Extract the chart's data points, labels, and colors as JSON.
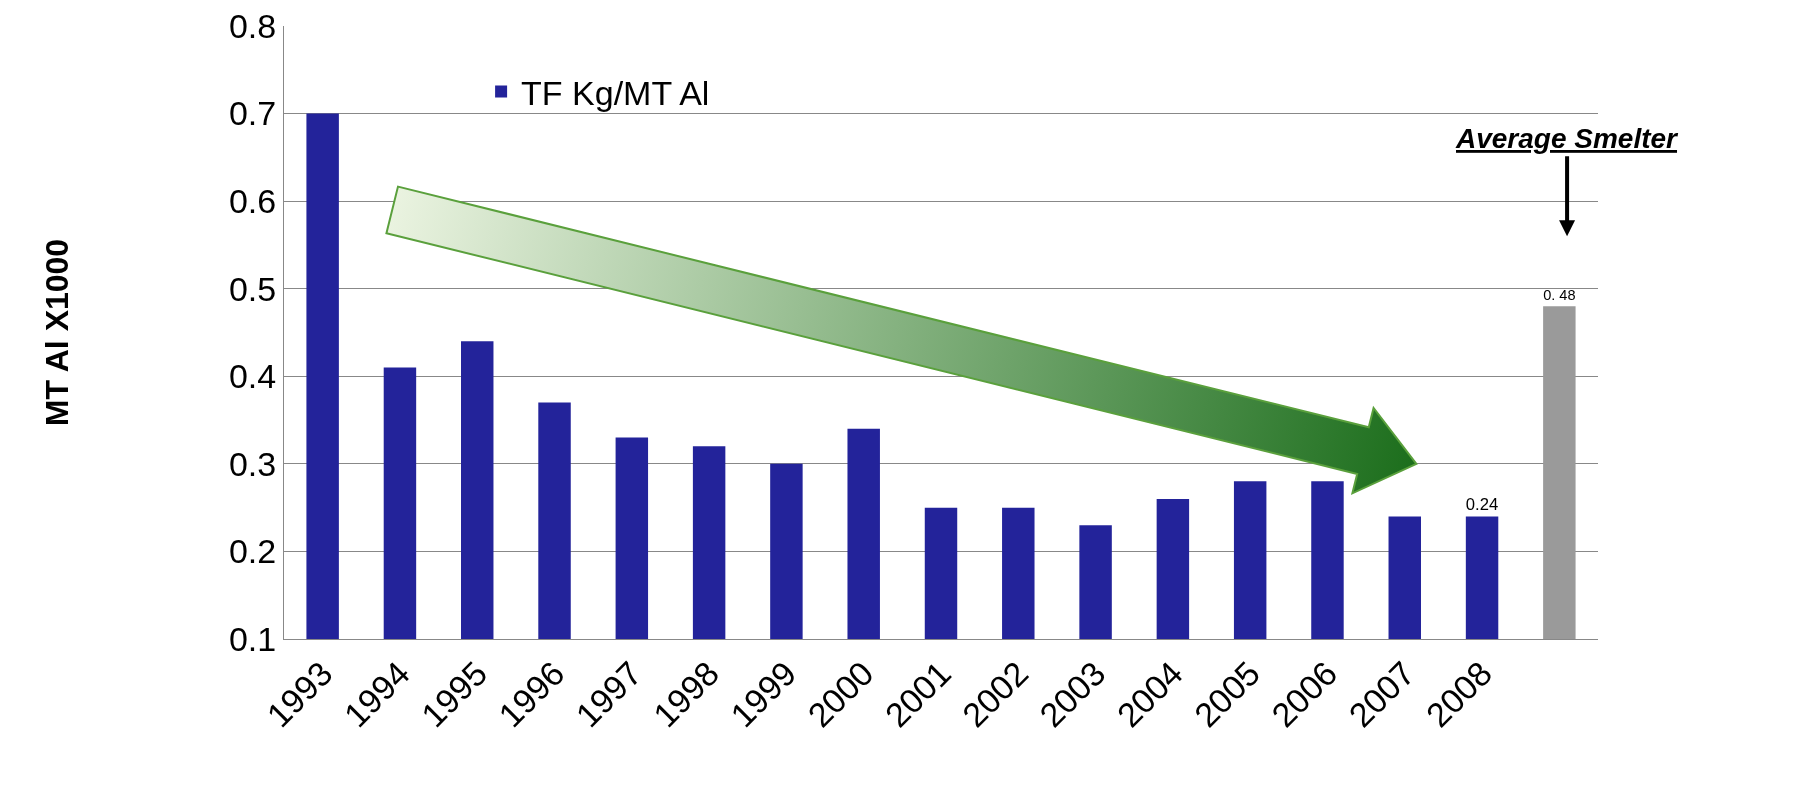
{
  "chart_data": {
    "type": "bar",
    "ylabel": "MT Al X1000",
    "categories": [
      "1993",
      "1994",
      "1995",
      "1996",
      "1997",
      "1998",
      "1999",
      "2000",
      "2001",
      "2002",
      "2003",
      "2004",
      "2005",
      "2006",
      "2007",
      "2008",
      null
    ],
    "series": [
      {
        "name": "TF Kg/MT Al",
        "values": [
          0.7,
          0.41,
          0.44,
          0.37,
          0.33,
          0.32,
          0.3,
          0.34,
          0.25,
          0.25,
          0.23,
          0.26,
          0.28,
          0.28,
          0.24,
          0.24,
          0.48
        ],
        "colors": [
          "#23239a",
          "#23239a",
          "#23239a",
          "#23239a",
          "#23239a",
          "#23239a",
          "#23239a",
          "#23239a",
          "#23239a",
          "#23239a",
          "#23239a",
          "#23239a",
          "#23239a",
          "#23239a",
          "#23239a",
          "#23239a",
          "#9a9a9a"
        ],
        "value_labels": [
          null,
          null,
          null,
          null,
          null,
          null,
          null,
          null,
          null,
          null,
          null,
          null,
          null,
          null,
          null,
          "0.24",
          "0. 48"
        ]
      }
    ],
    "ylim": [
      0.1,
      0.8
    ],
    "yticks": [
      0.1,
      0.2,
      0.3,
      0.4,
      0.5,
      0.6,
      0.7,
      0.8
    ],
    "grid": "y",
    "legend": "top left",
    "annotations": [
      "Average Smelter"
    ]
  }
}
